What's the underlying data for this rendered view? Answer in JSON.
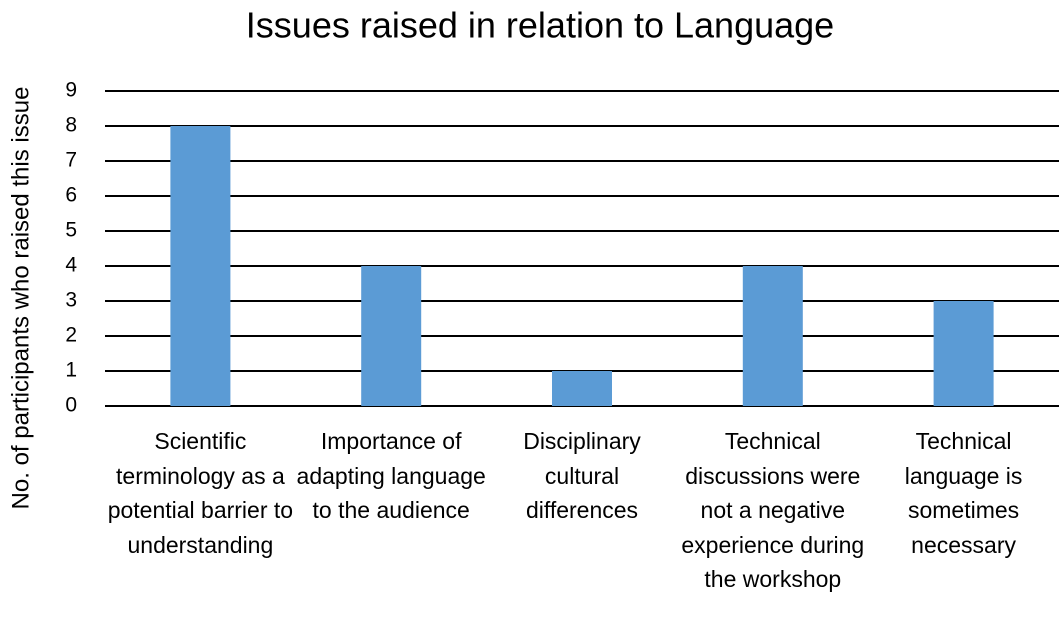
{
  "chart_data": {
    "type": "bar",
    "title": "Issues raised in relation to Language",
    "ylabel": "No. of participants who raised this issue",
    "categories": [
      "Scientific terminology as a potential barrier to understanding",
      "Importance of adapting language to the audience",
      "Disciplinary cultural differences",
      "Technical discussions were not a negative experience during the workshop",
      "Technical language is sometimes necessary"
    ],
    "values": [
      8,
      4,
      1,
      4,
      3
    ],
    "color": "#5b9bd5",
    "ylim": [
      0,
      9
    ],
    "yticks": [
      0,
      1,
      2,
      3,
      4,
      5,
      6,
      7,
      8,
      9
    ],
    "grid": true
  }
}
